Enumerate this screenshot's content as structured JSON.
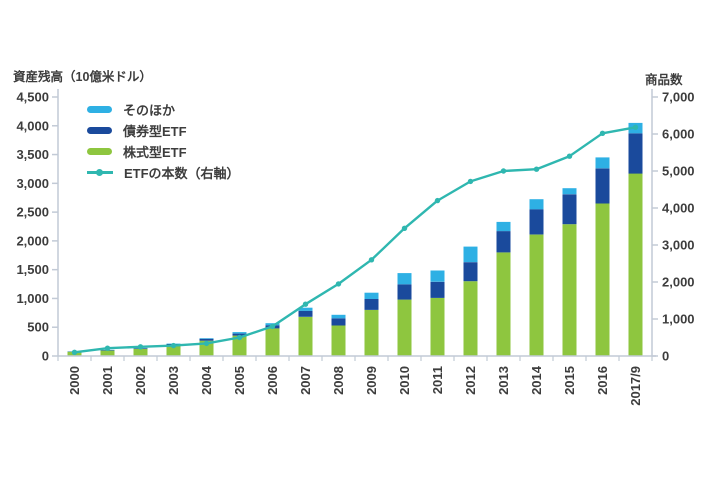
{
  "axis_titles": {
    "left": "資産残高（10億米ドル）",
    "right": "商品数"
  },
  "legend": [
    {
      "label": "そのほか",
      "color": "#2eb0e4",
      "marker": "swatch"
    },
    {
      "label": "債券型ETF",
      "color": "#1a4a9c",
      "marker": "swatch"
    },
    {
      "label": "株式型ETF",
      "color": "#8ec63f",
      "marker": "swatch"
    },
    {
      "label": "ETFの本数（右軸）",
      "color": "#2fb7b0",
      "marker": "line-dot"
    }
  ],
  "chart_data": {
    "type": "bar",
    "subtype": "stacked-bars-with-line",
    "categories": [
      "2000",
      "2001",
      "2002",
      "2003",
      "2004",
      "2005",
      "2006",
      "2007",
      "2008",
      "2009",
      "2010",
      "2011",
      "2012",
      "2013",
      "2014",
      "2015",
      "2016",
      "2017/9"
    ],
    "series": [
      {
        "name": "株式型ETF",
        "type": "bar",
        "stack": "assets",
        "color": "#8ec63f",
        "values": [
          75,
          95,
          125,
          190,
          265,
          355,
          480,
          680,
          530,
          800,
          980,
          1010,
          1300,
          1800,
          2110,
          2290,
          2650,
          3170
        ]
      },
      {
        "name": "債券型ETF",
        "type": "bar",
        "stack": "assets",
        "color": "#1a4a9c",
        "values": [
          3,
          8,
          12,
          18,
          35,
          35,
          55,
          105,
          125,
          190,
          265,
          280,
          330,
          370,
          440,
          520,
          610,
          700
        ]
      },
      {
        "name": "そのほか",
        "type": "bar",
        "stack": "assets",
        "color": "#2eb0e4",
        "values": [
          4,
          5,
          5,
          7,
          10,
          25,
          35,
          55,
          60,
          110,
          195,
          195,
          270,
          160,
          175,
          105,
          190,
          180
        ]
      },
      {
        "name": "ETFの本数（右軸）",
        "type": "line",
        "axis": "right",
        "color": "#2fb7b0",
        "values": [
          100,
          210,
          250,
          280,
          340,
          500,
          800,
          1400,
          1950,
          2600,
          3450,
          4200,
          4720,
          5000,
          5050,
          5400,
          6020,
          6180
        ]
      }
    ],
    "left_axis": {
      "label": "資産残高（10億米ドル）",
      "min": 0,
      "max": 4500,
      "step": 500,
      "tick_labels": [
        "0",
        "500",
        "1,000",
        "1,500",
        "2,000",
        "2,500",
        "3,000",
        "3,500",
        "4,000",
        "4,500"
      ]
    },
    "right_axis": {
      "label": "商品数",
      "min": 0,
      "max": 7000,
      "step": 1000,
      "tick_labels": [
        "0",
        "1,000",
        "2,000",
        "3,000",
        "4,000",
        "5,000",
        "6,000",
        "7,000"
      ]
    },
    "grid": false,
    "legend_position": "upper-left-inside",
    "x_tick_label_rotation": -90,
    "text_color": "#3d3d3d",
    "axis_line_color": "#c2cad6"
  }
}
